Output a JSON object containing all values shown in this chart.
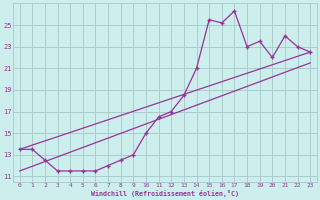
{
  "xlabel": "Windchill (Refroidissement éolien,°C)",
  "bg_color": "#cceeed",
  "grid_color": "#aacccc",
  "line_color": "#993399",
  "xlim": [
    -0.5,
    23.5
  ],
  "ylim": [
    10.5,
    27.0
  ],
  "xticks": [
    0,
    1,
    2,
    3,
    4,
    5,
    6,
    7,
    8,
    9,
    10,
    11,
    12,
    13,
    14,
    15,
    16,
    17,
    18,
    19,
    20,
    21,
    22,
    23
  ],
  "yticks": [
    11,
    13,
    15,
    17,
    19,
    21,
    23,
    25
  ],
  "series1_x": [
    0,
    1,
    2,
    3,
    4,
    5,
    6,
    7,
    8,
    9,
    10,
    11,
    12,
    13,
    14,
    15,
    16,
    17,
    18,
    19,
    20,
    21,
    22,
    23
  ],
  "series1_y": [
    13.5,
    13.5,
    12.5,
    11.5,
    11.5,
    11.5,
    11.5,
    12.0,
    12.5,
    13.0,
    15.0,
    16.5,
    17.0,
    18.5,
    21.0,
    25.5,
    25.2,
    26.3,
    23.0,
    23.5,
    22.0,
    24.0,
    23.0,
    22.5
  ],
  "series2_x": [
    0,
    23
  ],
  "series2_y": [
    13.5,
    22.5
  ],
  "series3_x": [
    0,
    23
  ],
  "series3_y": [
    11.5,
    21.5
  ]
}
